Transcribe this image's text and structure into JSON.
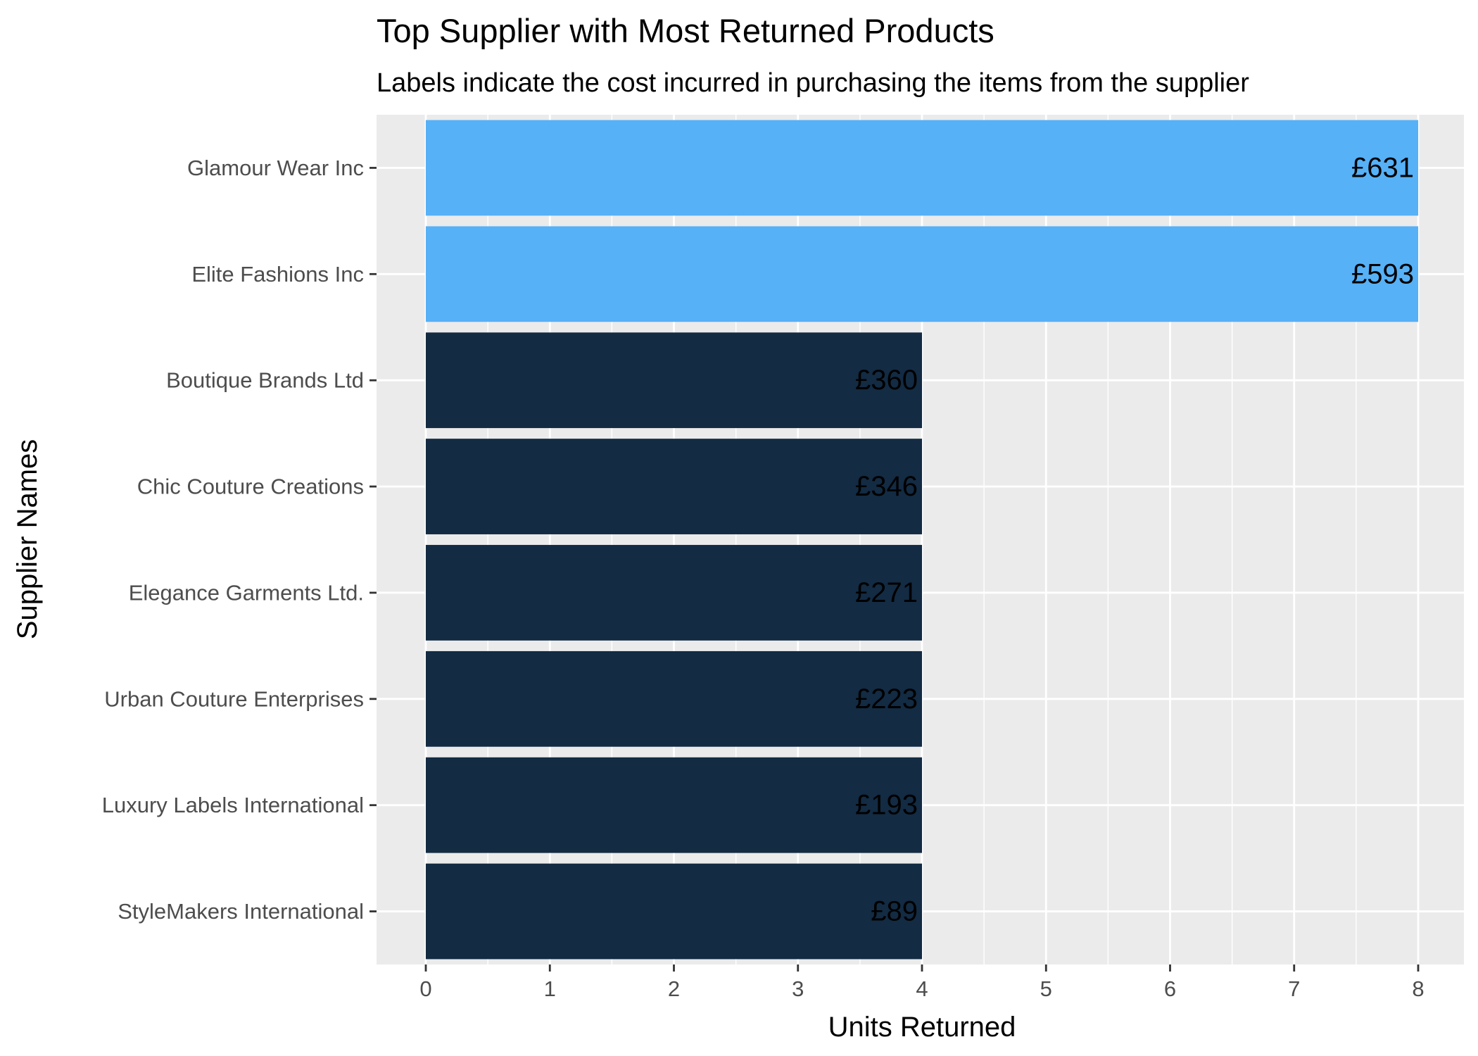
{
  "chart_data": {
    "type": "bar",
    "orientation": "horizontal",
    "title": "Top Supplier with Most Returned Products",
    "subtitle": "Labels indicate the cost incurred in purchasing the items from the supplier",
    "xlabel": "Units Returned",
    "ylabel": "Supplier Names",
    "xlim": [
      0,
      8
    ],
    "xticks": [
      0,
      1,
      2,
      3,
      4,
      5,
      6,
      7,
      8
    ],
    "grid": true,
    "legend": "none",
    "categories": [
      "Glamour Wear Inc",
      "Elite Fashions Inc",
      "Boutique Brands Ltd",
      "Chic Couture Creations",
      "Elegance Garments Ltd.",
      "Urban Couture Enterprises",
      "Luxury Labels International",
      "StyleMakers International"
    ],
    "values": [
      8,
      8,
      4,
      4,
      4,
      4,
      4,
      4
    ],
    "labels": [
      "£631",
      "£593",
      "£360",
      "£346",
      "£271",
      "£223",
      "£193",
      "£89"
    ],
    "colors": {
      "highlight": "#56b1f7",
      "default": "#132b43",
      "panel": "#ebebeb",
      "grid": "#ffffff"
    }
  }
}
